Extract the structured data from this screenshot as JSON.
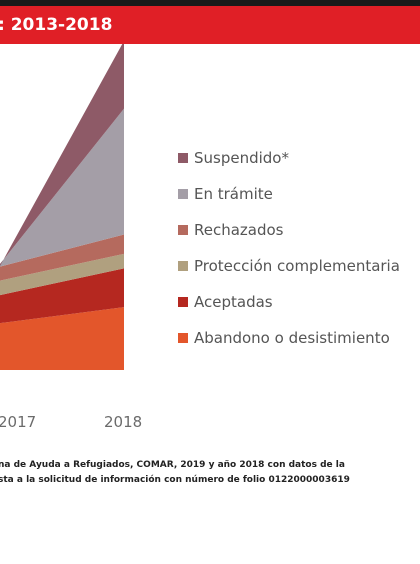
{
  "header": {
    "title": ": 2013-2018"
  },
  "chart_data": {
    "type": "area",
    "stacked": true,
    "x": [
      "2017",
      "2018"
    ],
    "series": [
      {
        "name": "Abandono o desistimiento",
        "values": [
          10,
          13
        ],
        "color": "#e3562b"
      },
      {
        "name": "Aceptadas",
        "values": [
          6,
          8
        ],
        "color": "#b52820"
      },
      {
        "name": "Protección complementaria",
        "values": [
          3,
          3
        ],
        "color": "#b0a07f"
      },
      {
        "name": "Rechazados",
        "values": [
          3,
          4
        ],
        "color": "#b56a5e"
      },
      {
        "name": "En trámite",
        "values": [
          3,
          26
        ],
        "color": "#a49ea7"
      },
      {
        "name": "Suspendido*",
        "values": [
          1,
          14
        ],
        "color": "#8e5a67"
      }
    ],
    "legend_position": "right",
    "legend_order": [
      "Suspendido*",
      "En trámite",
      "Rechazados",
      "Protección complementaria",
      "Aceptadas",
      "Abandono o desistimiento"
    ],
    "grid": false
  },
  "source": {
    "line1": "na de Ayuda a Refugiados, COMAR, 2019 y año 2018 con datos de la",
    "line2": "sta a la solicitud de información con número de folio 0122000003619"
  }
}
